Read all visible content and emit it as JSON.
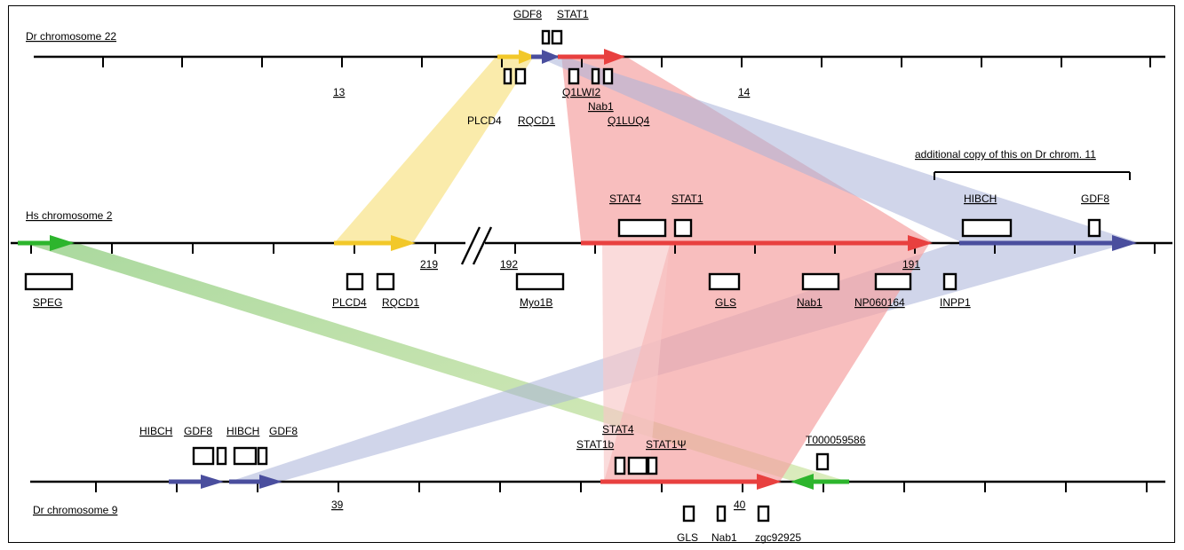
{
  "tracks": {
    "dr22": {
      "label": "Dr chromosome 22",
      "coord_labels": [
        "13",
        "14"
      ]
    },
    "hs2": {
      "label": "Hs chromosome 2",
      "coord_labels": [
        "219",
        "192",
        "191"
      ]
    },
    "dr9": {
      "label": "Dr chromosome 9",
      "coord_labels": [
        "39",
        "40"
      ]
    }
  },
  "genes": {
    "dr22_top": [
      "GDF8",
      "STAT1"
    ],
    "dr22_bottom": [
      "Q1LWI2",
      "Nab1",
      "Q1LUQ4",
      "PLCD4",
      "RQCD1"
    ],
    "hs2_top": [
      "STAT4",
      "STAT1",
      "HIBCH",
      "GDF8"
    ],
    "hs2_bottom": [
      "SPEG",
      "PLCD4",
      "RQCD1",
      "Myo1B",
      "GLS",
      "Nab1",
      "NP060164",
      "INPP1"
    ],
    "dr9_top": [
      "HIBCH",
      "GDF8",
      "HIBCH",
      "GDF8",
      "STAT4",
      "STAT1b",
      "STAT1Ψ",
      "T000059586"
    ],
    "dr9_bottom": [
      "GLS",
      "Nab1",
      "zgc92925"
    ]
  },
  "annotation": {
    "copy_note": "additional copy of this on Dr chrom. 11"
  },
  "colors": {
    "green": "#2db52d",
    "yellow": "#f2c82a",
    "blue": "#4a4e9e",
    "red": "#e8403f",
    "yellow_band": "#f8e48f",
    "red_band": "#f5a3a3",
    "blue_band": "#aab2d8",
    "green_band": "#a7d08a"
  }
}
